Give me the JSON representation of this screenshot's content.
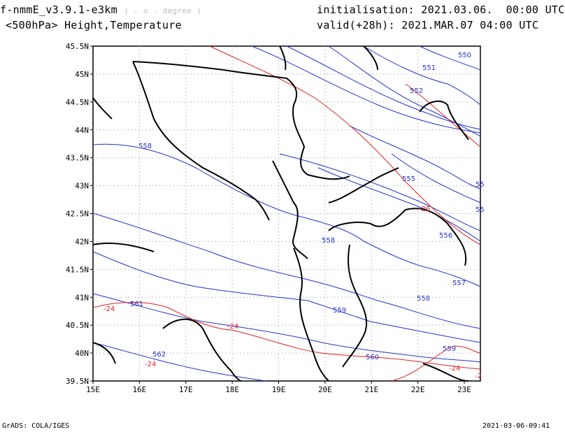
{
  "header": {
    "model": "f-nmmE_v3.9.1-e3km",
    "model_sub": "( . x . degree )",
    "level_field": "<500hPa> Height,Temperature",
    "init": "initialisation: 2021.03.06.  00:00 UTC",
    "valid": "valid(+28h): 2021.MAR.07 04:00 UTC"
  },
  "footer": {
    "left": "GrADS: COLA/IGES",
    "right": "2021-03-06-09:41"
  },
  "map": {
    "lon_labels": [
      "15E",
      "16E",
      "17E",
      "18E",
      "19E",
      "20E",
      "21E",
      "22E",
      "23E"
    ],
    "lat_labels": [
      "45.5N",
      "45N",
      "44.5N",
      "44N",
      "43.5N",
      "43N",
      "42.5N",
      "42N",
      "41.5N",
      "41N",
      "40.5N",
      "40N",
      "39.5N"
    ],
    "grid": "dotted",
    "height_color": "#2233cc",
    "temp_color": "#dd2222",
    "height_labels": [
      "550",
      "551",
      "552",
      "558",
      "555",
      "556",
      "557",
      "558",
      "559",
      "560",
      "561",
      "562",
      "558",
      "559",
      "55",
      "55"
    ],
    "temp_labels": [
      "-26",
      "-24",
      "-24",
      "-24",
      "-24",
      "-2"
    ]
  }
}
